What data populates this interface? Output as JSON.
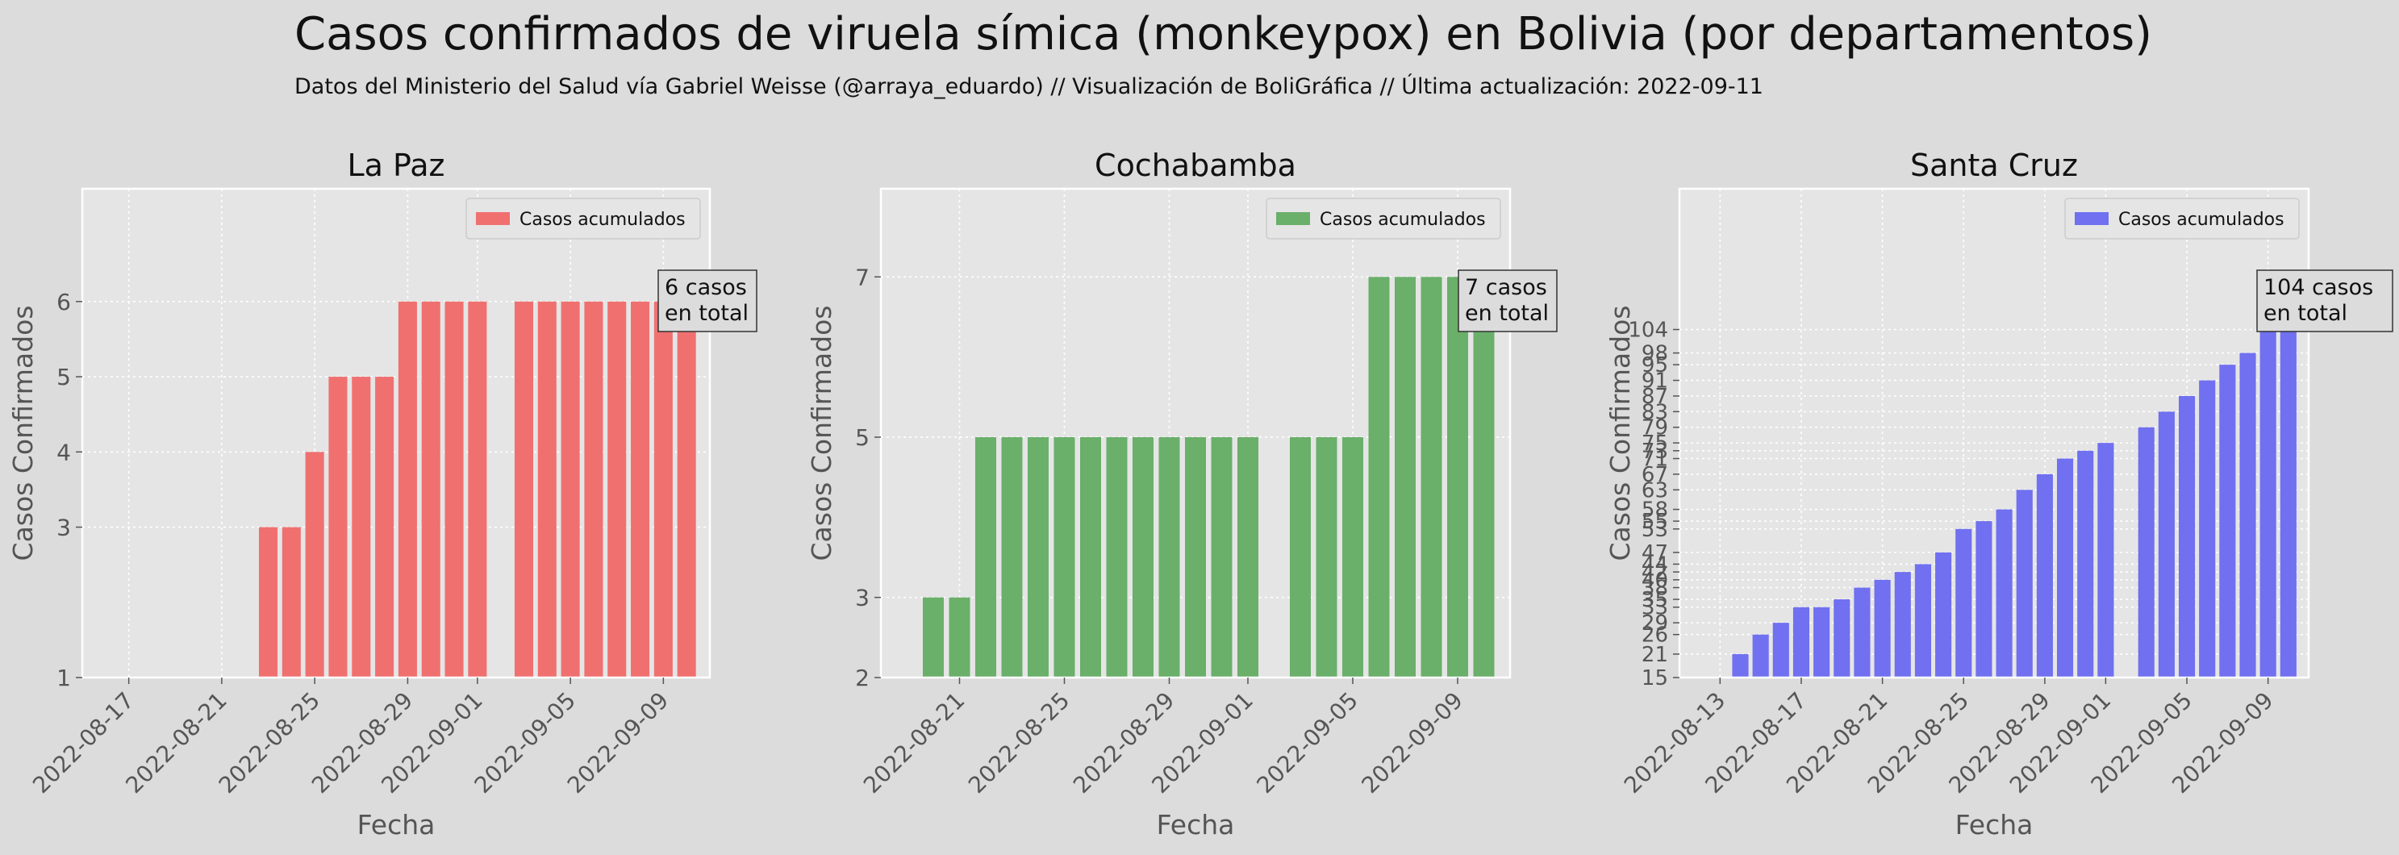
{
  "header": {
    "title": "Casos confirmados de viruela símica (monkeypox) en Bolivia (por departamentos)",
    "subtitle": "Datos del Ministerio del Salud vía Gabriel Weisse (@arraya_eduardo)  //  Visualización de BoliGráfica  //  Última actualización: 2022-09-11"
  },
  "colors": {
    "background": "#dcdcdc",
    "axes_bg": "#e5e5e5",
    "grid": "#ffffff"
  },
  "chart_data": [
    {
      "type": "bar",
      "title": "La Paz",
      "xlabel": "Fecha",
      "ylabel": "Casos Confirmados",
      "legend": "Casos acumulados",
      "legend_position": "top-right",
      "color": "#f07070",
      "annotation": "6 casos\nen total",
      "x_start": "2022-08-15",
      "x_end": "2022-09-11",
      "yticks": [
        1,
        3,
        4,
        5,
        6
      ],
      "ylim": [
        1,
        7.5
      ],
      "xticks": [
        "2022-08-17",
        "2022-08-21",
        "2022-08-25",
        "2022-08-29",
        "2022-09-01",
        "2022-09-05",
        "2022-09-09"
      ],
      "dates": [
        "2022-08-23",
        "2022-08-24",
        "2022-08-25",
        "2022-08-26",
        "2022-08-27",
        "2022-08-28",
        "2022-08-29",
        "2022-08-30",
        "2022-08-31",
        "2022-09-01",
        "2022-09-03",
        "2022-09-04",
        "2022-09-05",
        "2022-09-06",
        "2022-09-07",
        "2022-09-08",
        "2022-09-09",
        "2022-09-10"
      ],
      "values": [
        3,
        3,
        4,
        5,
        5,
        5,
        6,
        6,
        6,
        6,
        6,
        6,
        6,
        6,
        6,
        6,
        6,
        6
      ]
    },
    {
      "type": "bar",
      "title": "Cochabamba",
      "xlabel": "Fecha",
      "ylabel": "Casos Confirmados",
      "legend": "Casos acumulados",
      "legend_position": "top-right",
      "color": "#6aaf6a",
      "annotation": "7 casos\nen total",
      "x_start": "2022-08-18",
      "x_end": "2022-09-11",
      "yticks": [
        2,
        3,
        5,
        7
      ],
      "ylim": [
        2,
        8.1
      ],
      "xticks": [
        "2022-08-21",
        "2022-08-25",
        "2022-08-29",
        "2022-09-01",
        "2022-09-05",
        "2022-09-09"
      ],
      "dates": [
        "2022-08-20",
        "2022-08-21",
        "2022-08-22",
        "2022-08-23",
        "2022-08-24",
        "2022-08-25",
        "2022-08-26",
        "2022-08-27",
        "2022-08-28",
        "2022-08-29",
        "2022-08-30",
        "2022-08-31",
        "2022-09-01",
        "2022-09-03",
        "2022-09-04",
        "2022-09-05",
        "2022-09-06",
        "2022-09-07",
        "2022-09-08",
        "2022-09-09",
        "2022-09-10"
      ],
      "values": [
        3,
        3,
        5,
        5,
        5,
        5,
        5,
        5,
        5,
        5,
        5,
        5,
        5,
        5,
        5,
        5,
        7,
        7,
        7,
        7,
        7
      ]
    },
    {
      "type": "bar",
      "title": "Santa Cruz",
      "xlabel": "Fecha",
      "ylabel": "Casos Confirmados",
      "legend": "Casos acumulados",
      "legend_position": "top-right",
      "color": "#7070f0",
      "annotation": "104 casos\nen total",
      "x_start": "2022-08-11",
      "x_end": "2022-09-11",
      "yticks": [
        15,
        21,
        26,
        29,
        33,
        35,
        38,
        40,
        42,
        44,
        47,
        53,
        55,
        58,
        63,
        67,
        71,
        73,
        75,
        79,
        83,
        87,
        91,
        95,
        98,
        104
      ],
      "ylim": [
        15,
        140
      ],
      "xticks": [
        "2022-08-13",
        "2022-08-17",
        "2022-08-21",
        "2022-08-25",
        "2022-08-29",
        "2022-09-01",
        "2022-09-05",
        "2022-09-09"
      ],
      "dates": [
        "2022-08-13",
        "2022-08-14",
        "2022-08-15",
        "2022-08-16",
        "2022-08-17",
        "2022-08-18",
        "2022-08-19",
        "2022-08-20",
        "2022-08-21",
        "2022-08-22",
        "2022-08-23",
        "2022-08-24",
        "2022-08-25",
        "2022-08-26",
        "2022-08-27",
        "2022-08-28",
        "2022-08-29",
        "2022-08-30",
        "2022-08-31",
        "2022-09-01",
        "2022-09-03",
        "2022-09-04",
        "2022-09-05",
        "2022-09-06",
        "2022-09-07",
        "2022-09-08",
        "2022-09-09",
        "2022-09-10"
      ],
      "values": [
        15,
        21,
        26,
        29,
        33,
        33,
        35,
        38,
        40,
        42,
        44,
        47,
        53,
        55,
        58,
        63,
        67,
        71,
        73,
        75,
        79,
        83,
        87,
        91,
        95,
        98,
        104,
        104
      ]
    }
  ]
}
